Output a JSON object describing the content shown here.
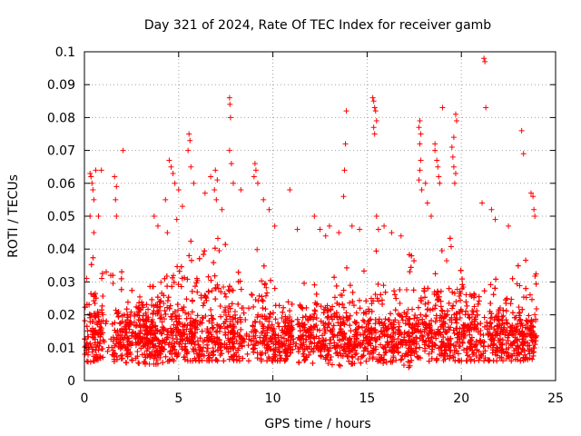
{
  "chart_data": {
    "type": "scatter",
    "title": "Day 321 of 2024, Rate Of TEC Index for receiver gamb",
    "xlabel": "GPS time / hours",
    "ylabel": "ROTI / TECUs",
    "xlim": [
      0,
      25
    ],
    "ylim": [
      0,
      0.1
    ],
    "xticks": [
      0,
      5,
      10,
      15,
      20,
      25
    ],
    "xtick_labels": [
      "0",
      "5",
      "10",
      "15",
      "20",
      "25"
    ],
    "yticks": [
      0,
      0.01,
      0.02,
      0.03,
      0.04,
      0.05,
      0.06,
      0.07,
      0.08,
      0.09,
      0.1
    ],
    "ytick_labels": [
      "0",
      "0.01",
      "0.02",
      "0.03",
      "0.04",
      "0.05",
      "0.06",
      "0.07",
      "0.08",
      "0.09",
      "0.1"
    ],
    "grid": true,
    "marker": "plus",
    "color": "#ff0000",
    "series": [
      {
        "name": "ROTI",
        "points": [
          [
            0.3,
            0.063
          ],
          [
            0.35,
            0.062
          ],
          [
            0.4,
            0.06
          ],
          [
            0.45,
            0.058
          ],
          [
            0.5,
            0.055
          ],
          [
            0.6,
            0.064
          ],
          [
            0.9,
            0.064
          ],
          [
            0.75,
            0.05
          ],
          [
            0.3,
            0.05
          ],
          [
            0.5,
            0.045
          ],
          [
            1.6,
            0.062
          ],
          [
            1.7,
            0.059
          ],
          [
            1.65,
            0.055
          ],
          [
            1.7,
            0.05
          ],
          [
            2.05,
            0.07
          ],
          [
            3.7,
            0.05
          ],
          [
            3.9,
            0.047
          ],
          [
            4.3,
            0.055
          ],
          [
            4.5,
            0.067
          ],
          [
            4.6,
            0.065
          ],
          [
            4.7,
            0.063
          ],
          [
            4.8,
            0.06
          ],
          [
            5.0,
            0.058
          ],
          [
            5.2,
            0.053
          ],
          [
            4.4,
            0.045
          ],
          [
            4.9,
            0.049
          ],
          [
            5.55,
            0.075
          ],
          [
            5.6,
            0.073
          ],
          [
            5.5,
            0.07
          ],
          [
            5.65,
            0.065
          ],
          [
            5.8,
            0.06
          ],
          [
            6.4,
            0.057
          ],
          [
            6.7,
            0.062
          ],
          [
            6.9,
            0.058
          ],
          [
            6.95,
            0.064
          ],
          [
            7.05,
            0.061
          ],
          [
            7.0,
            0.055
          ],
          [
            7.3,
            0.052
          ],
          [
            7.7,
            0.086
          ],
          [
            7.72,
            0.084
          ],
          [
            7.75,
            0.08
          ],
          [
            7.7,
            0.07
          ],
          [
            7.8,
            0.066
          ],
          [
            7.9,
            0.06
          ],
          [
            8.3,
            0.058
          ],
          [
            9.05,
            0.066
          ],
          [
            9.1,
            0.064
          ],
          [
            9.0,
            0.062
          ],
          [
            9.2,
            0.06
          ],
          [
            9.5,
            0.055
          ],
          [
            9.8,
            0.052
          ],
          [
            10.1,
            0.047
          ],
          [
            10.9,
            0.058
          ],
          [
            11.3,
            0.046
          ],
          [
            12.2,
            0.05
          ],
          [
            12.5,
            0.046
          ],
          [
            12.8,
            0.044
          ],
          [
            13.0,
            0.047
          ],
          [
            13.5,
            0.045
          ],
          [
            13.9,
            0.082
          ],
          [
            13.85,
            0.072
          ],
          [
            13.8,
            0.064
          ],
          [
            13.75,
            0.056
          ],
          [
            14.2,
            0.047
          ],
          [
            14.6,
            0.046
          ],
          [
            15.3,
            0.086
          ],
          [
            15.35,
            0.085
          ],
          [
            15.4,
            0.083
          ],
          [
            15.45,
            0.082
          ],
          [
            15.5,
            0.079
          ],
          [
            15.35,
            0.077
          ],
          [
            15.4,
            0.075
          ],
          [
            15.5,
            0.05
          ],
          [
            15.6,
            0.046
          ],
          [
            15.9,
            0.047
          ],
          [
            16.3,
            0.045
          ],
          [
            16.8,
            0.044
          ],
          [
            17.8,
            0.079
          ],
          [
            17.75,
            0.077
          ],
          [
            17.85,
            0.075
          ],
          [
            17.8,
            0.072
          ],
          [
            17.85,
            0.067
          ],
          [
            17.8,
            0.064
          ],
          [
            17.75,
            0.061
          ],
          [
            17.9,
            0.058
          ],
          [
            18.1,
            0.06
          ],
          [
            18.2,
            0.054
          ],
          [
            18.4,
            0.05
          ],
          [
            18.6,
            0.072
          ],
          [
            18.6,
            0.07
          ],
          [
            18.7,
            0.067
          ],
          [
            18.75,
            0.065
          ],
          [
            18.8,
            0.062
          ],
          [
            18.85,
            0.06
          ],
          [
            19.0,
            0.083
          ],
          [
            19.6,
            0.074
          ],
          [
            19.5,
            0.071
          ],
          [
            19.55,
            0.068
          ],
          [
            19.6,
            0.065
          ],
          [
            19.65,
            0.06
          ],
          [
            19.7,
            0.081
          ],
          [
            19.75,
            0.079
          ],
          [
            19.7,
            0.063
          ],
          [
            21.2,
            0.098
          ],
          [
            21.25,
            0.097
          ],
          [
            21.3,
            0.083
          ],
          [
            21.1,
            0.054
          ],
          [
            21.6,
            0.052
          ],
          [
            21.8,
            0.049
          ],
          [
            22.5,
            0.047
          ],
          [
            23.2,
            0.076
          ],
          [
            23.3,
            0.069
          ],
          [
            23.7,
            0.057
          ],
          [
            23.8,
            0.056
          ],
          [
            23.85,
            0.052
          ],
          [
            23.9,
            0.05
          ]
        ],
        "band_profile": {
          "hours": [
            0,
            0.5,
            1,
            1.5,
            2,
            2.5,
            3,
            3.5,
            4,
            4.5,
            5,
            5.5,
            6,
            6.5,
            7,
            7.5,
            8,
            8.5,
            9,
            9.5,
            10,
            10.5,
            11,
            11.5,
            12,
            12.5,
            13,
            13.5,
            14,
            14.5,
            15,
            15.5,
            16,
            16.5,
            17,
            17.5,
            18,
            18.5,
            19,
            19.5,
            20,
            20.5,
            21,
            21.5,
            22,
            22.5,
            23,
            23.5,
            24
          ],
          "upper": [
            0.033,
            0.038,
            0.036,
            0.032,
            0.035,
            0.03,
            0.032,
            0.035,
            0.04,
            0.045,
            0.048,
            0.046,
            0.042,
            0.04,
            0.044,
            0.043,
            0.035,
            0.032,
            0.042,
            0.04,
            0.035,
            0.03,
            0.028,
            0.032,
            0.035,
            0.036,
            0.03,
            0.038,
            0.036,
            0.032,
            0.035,
            0.04,
            0.038,
            0.036,
            0.04,
            0.038,
            0.04,
            0.042,
            0.043,
            0.044,
            0.04,
            0.035,
            0.038,
            0.036,
            0.035,
            0.033,
            0.035,
            0.038,
            0.034
          ],
          "lower": [
            0.005,
            0.006,
            0.006,
            0.006,
            0.005,
            0.006,
            0.005,
            0.005,
            0.005,
            0.006,
            0.006,
            0.006,
            0.006,
            0.006,
            0.006,
            0.006,
            0.006,
            0.006,
            0.006,
            0.006,
            0.006,
            0.006,
            0.006,
            0.005,
            0.005,
            0.005,
            0.004,
            0.004,
            0.005,
            0.005,
            0.006,
            0.006,
            0.005,
            0.005,
            0.004,
            0.004,
            0.005,
            0.005,
            0.006,
            0.006,
            0.006,
            0.006,
            0.006,
            0.006,
            0.006,
            0.006,
            0.006,
            0.006,
            0.006
          ],
          "center": 0.013,
          "gap_hours": [
            [
              1.0,
              1.4
            ],
            [
              8.45,
              8.85
            ],
            [
              11.05,
              11.3
            ]
          ]
        }
      }
    ]
  }
}
